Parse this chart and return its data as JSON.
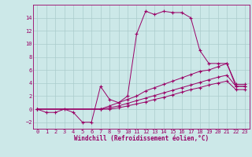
{
  "xlabel": "Windchill (Refroidissement éolien,°C)",
  "background_color": "#cce8e8",
  "line_color": "#990066",
  "xlim": [
    -0.5,
    23.5
  ],
  "ylim": [
    -3,
    16
  ],
  "xticks": [
    0,
    1,
    2,
    3,
    4,
    5,
    6,
    7,
    8,
    9,
    10,
    11,
    12,
    13,
    14,
    15,
    16,
    17,
    18,
    19,
    20,
    21,
    22,
    23
  ],
  "yticks": [
    -2,
    0,
    2,
    4,
    6,
    8,
    10,
    12,
    14
  ],
  "series1_x": [
    0,
    1,
    2,
    3,
    4,
    5,
    6,
    7,
    8,
    9,
    10,
    11,
    12,
    13,
    14,
    15,
    16,
    17,
    18,
    19,
    20,
    21,
    22,
    23
  ],
  "series1_y": [
    0,
    -0.5,
    -0.5,
    0,
    -0.5,
    -2.0,
    -2.0,
    3.5,
    1.5,
    1.0,
    2.0,
    11.5,
    15.0,
    14.5,
    15.0,
    14.8,
    14.8,
    14.0,
    9.0,
    7.0,
    7.0,
    7.0,
    3.5,
    3.5
  ],
  "series2_x": [
    0,
    7,
    8,
    9,
    10,
    11,
    12,
    13,
    14,
    15,
    16,
    17,
    18,
    19,
    20,
    21,
    22,
    23
  ],
  "series2_y": [
    0,
    0,
    0.5,
    1.0,
    1.5,
    2.0,
    2.8,
    3.3,
    3.8,
    4.3,
    4.8,
    5.3,
    5.8,
    6.0,
    6.5,
    7.0,
    3.8,
    3.8
  ],
  "series3_x": [
    0,
    7,
    8,
    9,
    10,
    11,
    12,
    13,
    14,
    15,
    16,
    17,
    18,
    19,
    20,
    21,
    22,
    23
  ],
  "series3_y": [
    0,
    0,
    0.2,
    0.5,
    0.9,
    1.3,
    1.7,
    2.1,
    2.5,
    2.9,
    3.3,
    3.7,
    4.1,
    4.5,
    4.9,
    5.2,
    3.5,
    3.5
  ],
  "series4_x": [
    0,
    7,
    8,
    9,
    10,
    11,
    12,
    13,
    14,
    15,
    16,
    17,
    18,
    19,
    20,
    21,
    22,
    23
  ],
  "series4_y": [
    0,
    0,
    0.0,
    0.2,
    0.5,
    0.8,
    1.1,
    1.5,
    1.8,
    2.2,
    2.6,
    3.0,
    3.3,
    3.7,
    4.0,
    4.3,
    3.0,
    3.0
  ],
  "grid_color": "#aacccc",
  "xlabel_fontsize": 5.5,
  "tick_fontsize": 5.0
}
